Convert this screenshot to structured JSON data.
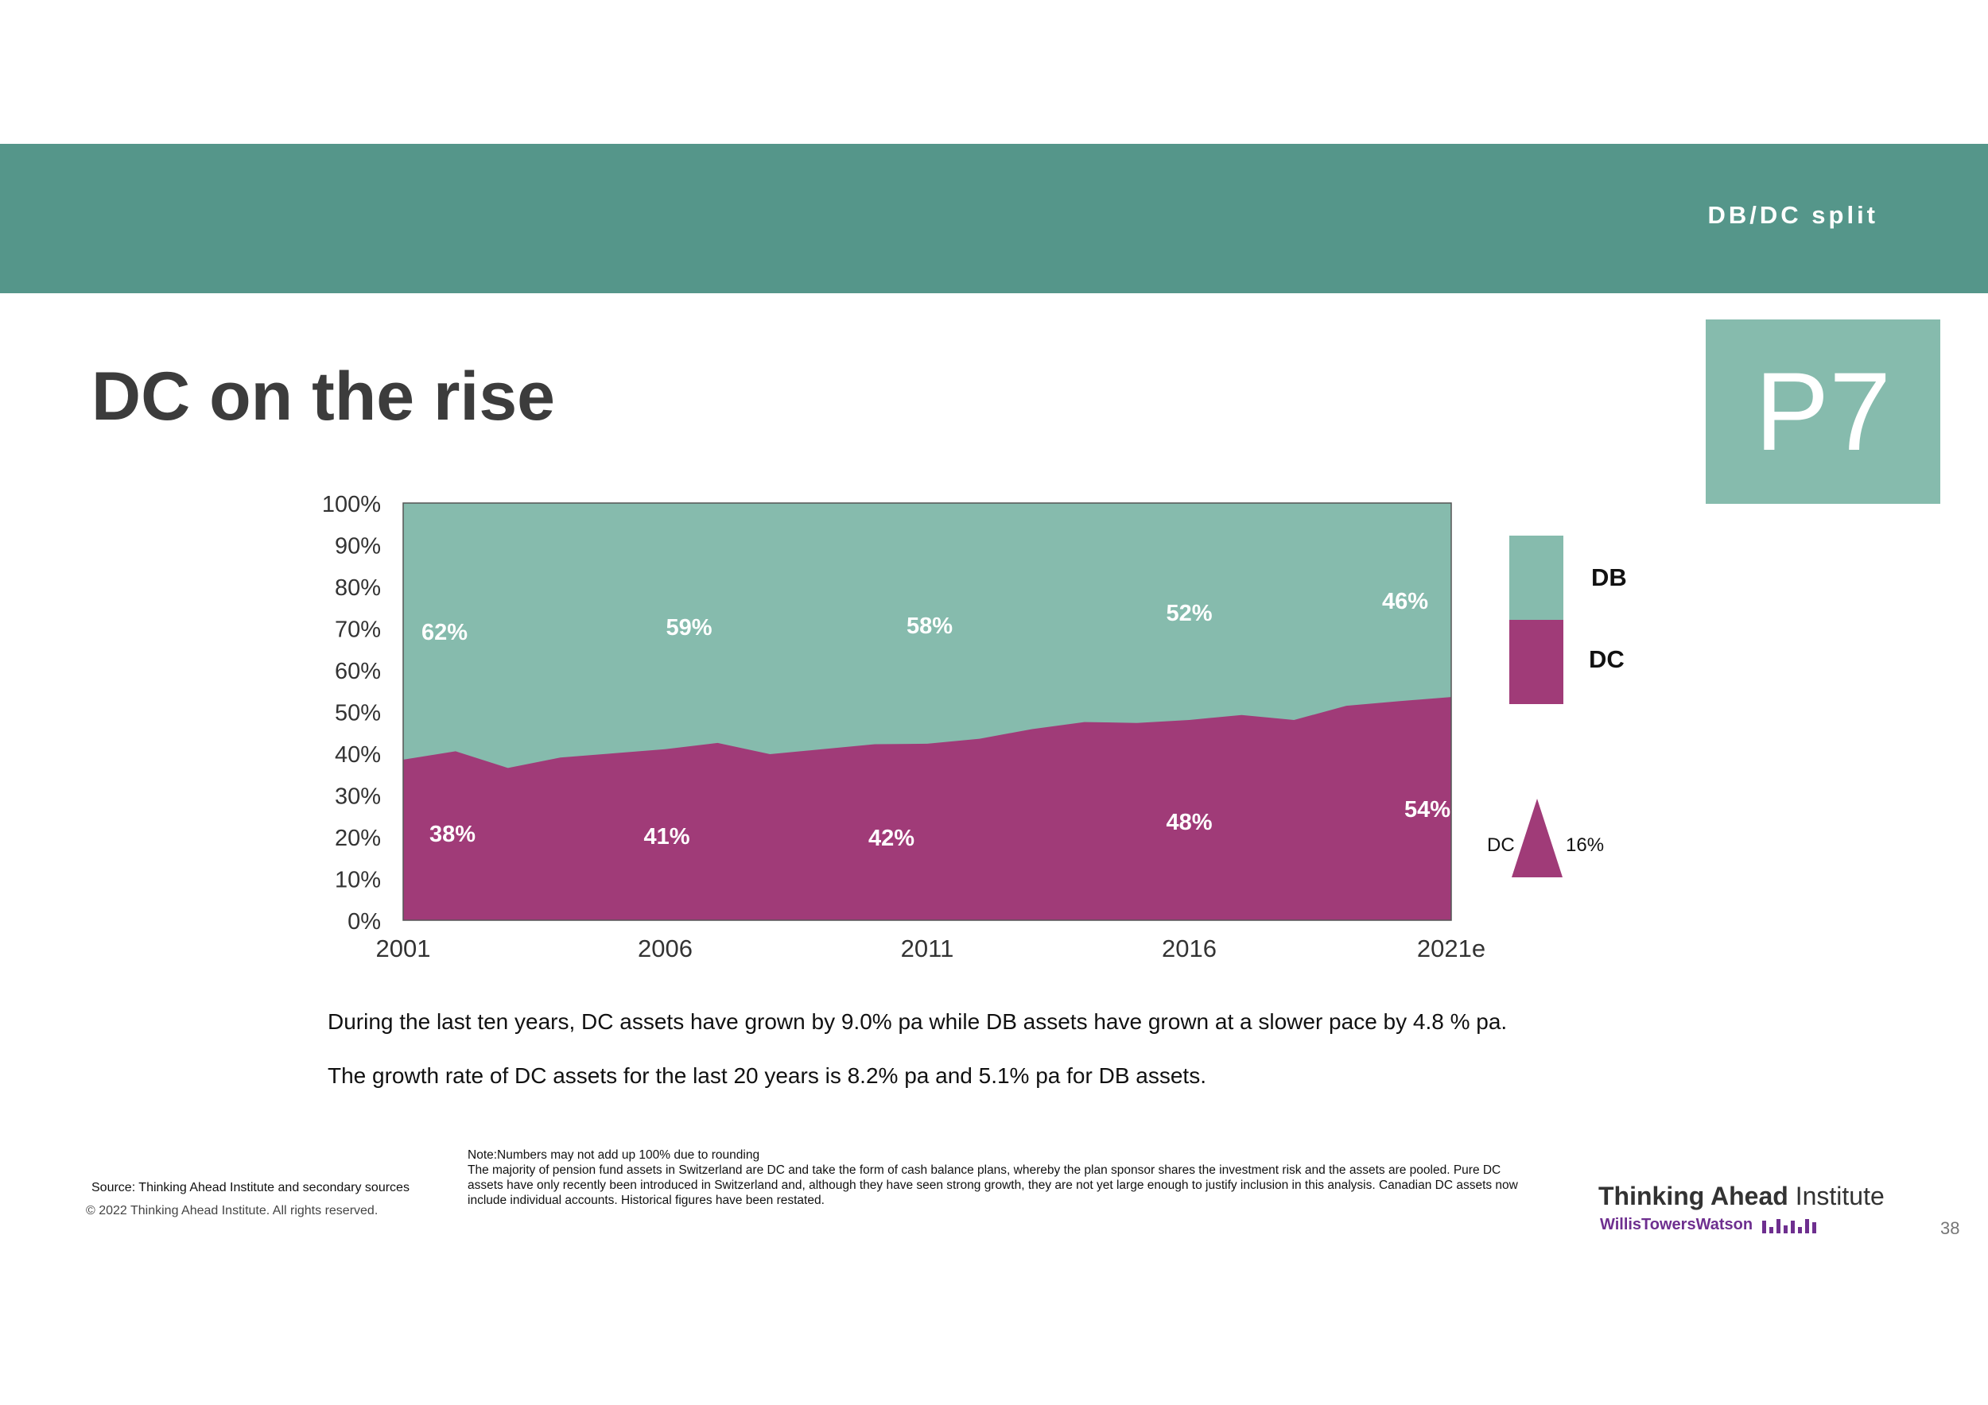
{
  "header": {
    "section_title": "DB/DC split"
  },
  "badge": {
    "label": "P7"
  },
  "page": {
    "title": "DC on the rise",
    "page_number": "38"
  },
  "colors": {
    "band": "#55968a",
    "db": "#86bbad",
    "dc": "#a03b78",
    "badge": "#86bbad"
  },
  "chart_data": {
    "type": "area",
    "stacked": true,
    "x": [
      "2001",
      "2002",
      "2003",
      "2004",
      "2005",
      "2006",
      "2007",
      "2008",
      "2009",
      "2010",
      "2011",
      "2012",
      "2013",
      "2014",
      "2015",
      "2016",
      "2017",
      "2018",
      "2019",
      "2020",
      "2021e"
    ],
    "series": [
      {
        "name": "DC",
        "values": [
          38.5,
          40.5,
          36.5,
          39,
          40,
          41,
          42.5,
          39.8,
          41,
          42.2,
          42.3,
          43.5,
          45.8,
          47.5,
          47.3,
          48,
          49.2,
          48,
          51.4,
          52.5,
          53.5
        ]
      },
      {
        "name": "DB",
        "values": [
          61.5,
          59.5,
          63.5,
          61,
          60,
          59,
          57.5,
          60.2,
          59,
          57.8,
          57.7,
          56.5,
          54.2,
          52.5,
          52.7,
          52,
          50.8,
          52,
          48.6,
          47.5,
          46.5
        ]
      }
    ],
    "x_tick_labels": [
      "2001",
      "2006",
      "2011",
      "2016",
      "2021e"
    ],
    "y_tick_labels": [
      "0%",
      "10%",
      "20%",
      "30%",
      "40%",
      "50%",
      "60%",
      "70%",
      "80%",
      "90%",
      "100%"
    ],
    "ylim": [
      0,
      100
    ],
    "db_labels": [
      {
        "x": "2001",
        "text": "62%"
      },
      {
        "x": "2006",
        "text": "59%"
      },
      {
        "x": "2011",
        "text": "58%"
      },
      {
        "x": "2016",
        "text": "52%"
      },
      {
        "x": "2021e",
        "text": "46%"
      }
    ],
    "dc_labels": [
      {
        "x": "2001",
        "text": "38%"
      },
      {
        "x": "2006",
        "text": "41%"
      },
      {
        "x": "2011",
        "text": "42%"
      },
      {
        "x": "2016",
        "text": "48%"
      },
      {
        "x": "2021e",
        "text": "54%"
      }
    ],
    "legend": [
      {
        "name": "DB"
      },
      {
        "name": "DC"
      }
    ],
    "change_indicator": {
      "series": "DC",
      "value": "16%",
      "icon": "triangle-up-icon"
    }
  },
  "body": {
    "line1": "During the last ten years, DC assets have grown by 9.0% pa while DB assets have grown at a slower pace by 4.8 % pa.",
    "line2": "The growth rate of DC assets for the last 20 years is 8.2% pa and 5.1% pa for DB assets."
  },
  "footer": {
    "note_line1": "Note:Numbers may not add up 100% due to rounding",
    "note_line2": "The majority of pension fund assets in Switzerland are DC and take the form of cash balance plans, whereby the plan sponsor shares the investment risk and the assets are pooled. Pure DC assets have only recently been introduced in Switzerland and, although they have seen strong growth, they are not yet large enough to justify inclusion in this analysis. Canadian DC assets now include individual accounts. Historical figures have been restated.",
    "source": "Source: Thinking Ahead Institute  and secondary sources",
    "copyright": "© 2022 Thinking Ahead Institute. All rights reserved.",
    "logo_bold": "Thinking Ahead",
    "logo_regular": " Institute",
    "logo_sub": "WillisTowersWatson"
  }
}
